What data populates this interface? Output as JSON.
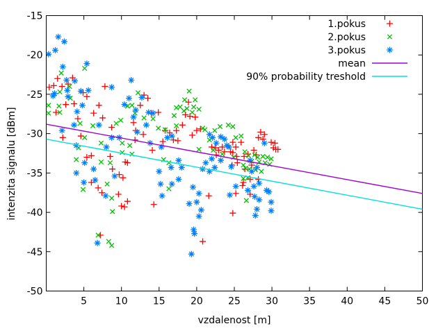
{
  "chart_data": {
    "type": "scatter",
    "title": "",
    "xlabel": "vzdalenost [m]",
    "ylabel": "intenzita signalu [dBm]",
    "xlim": [
      0,
      50
    ],
    "ylim": [
      -50,
      -15
    ],
    "xticks": [
      5,
      10,
      15,
      20,
      25,
      30,
      35,
      40,
      45,
      50
    ],
    "yticks": [
      -50,
      -45,
      -40,
      -35,
      -30,
      -25,
      -20,
      -15
    ],
    "grid": false,
    "legend_position": "top-right-inside",
    "background": "#ffffff",
    "axis_color": "#000000",
    "series": [
      {
        "name": "1.pokus",
        "kind": "points",
        "marker": "plus",
        "color": "#ff0000",
        "points": [
          [
            0.4,
            -24.1
          ],
          [
            1.0,
            -23.9
          ],
          [
            1.5,
            -23.0
          ],
          [
            2.1,
            -24.0
          ],
          [
            2.9,
            -23.7
          ],
          [
            3.5,
            -22.9
          ],
          [
            4.9,
            -24.8
          ],
          [
            5.4,
            -25.3
          ],
          [
            7.8,
            -24.0
          ],
          [
            2.6,
            -26.3
          ],
          [
            3.7,
            -26.2
          ],
          [
            7.0,
            -26.4
          ],
          [
            1.3,
            -27.3
          ],
          [
            6.3,
            -27.4
          ],
          [
            7.5,
            -28.0
          ],
          [
            4.2,
            -28.1
          ],
          [
            2.2,
            -30.5
          ],
          [
            4.6,
            -30.3
          ],
          [
            5.4,
            -33.0
          ],
          [
            6.0,
            -32.8
          ],
          [
            8.5,
            -32.9
          ],
          [
            6.0,
            -36.2
          ],
          [
            6.9,
            -36.9
          ],
          [
            7.4,
            -37.5
          ],
          [
            7.2,
            -42.9
          ],
          [
            8.7,
            -29.2
          ],
          [
            13.0,
            -25.1
          ],
          [
            13.5,
            -25.5
          ],
          [
            12.5,
            -26.4
          ],
          [
            14.0,
            -27.4
          ],
          [
            14.9,
            -27.3
          ],
          [
            11.6,
            -28.6
          ],
          [
            11.9,
            -29.6
          ],
          [
            12.9,
            -30.1
          ],
          [
            11.8,
            -30.8
          ],
          [
            15.8,
            -29.6
          ],
          [
            16.4,
            -29.9
          ],
          [
            15.5,
            -31.0
          ],
          [
            16.9,
            -30.8
          ],
          [
            17.3,
            -29.6
          ],
          [
            14.1,
            -32.1
          ],
          [
            10.5,
            -33.6
          ],
          [
            10.8,
            -33.7
          ],
          [
            8.8,
            -34.5
          ],
          [
            9.7,
            -35.2
          ],
          [
            10.2,
            -35.6
          ],
          [
            9.6,
            -37.7
          ],
          [
            10.8,
            -38.6
          ],
          [
            10.0,
            -39.2
          ],
          [
            10.4,
            -39.3
          ],
          [
            14.3,
            -39.0
          ],
          [
            18.9,
            -26.0
          ],
          [
            18.5,
            -27.6
          ],
          [
            19.1,
            -27.8
          ],
          [
            19.8,
            -27.9
          ],
          [
            18.1,
            -28.9
          ],
          [
            20.0,
            -29.6
          ],
          [
            20.5,
            -29.4
          ],
          [
            19.4,
            -30.2
          ],
          [
            17.5,
            -30.9
          ],
          [
            24.8,
            -31.1
          ],
          [
            25.9,
            -31.1
          ],
          [
            22.0,
            -31.7
          ],
          [
            22.5,
            -31.8
          ],
          [
            23.4,
            -31.7
          ],
          [
            25.2,
            -31.7
          ],
          [
            22.9,
            -32.1
          ],
          [
            23.7,
            -32.3
          ],
          [
            24.5,
            -32.3
          ],
          [
            22.6,
            -32.7
          ],
          [
            24.8,
            -32.4
          ],
          [
            25.3,
            -32.9
          ],
          [
            24.7,
            -34.0
          ],
          [
            25.4,
            -33.7
          ],
          [
            21.6,
            -37.9
          ],
          [
            25.2,
            -37.6
          ],
          [
            24.8,
            -40.1
          ],
          [
            20.8,
            -43.7
          ],
          [
            28.5,
            -29.8
          ],
          [
            29.0,
            -30.1
          ],
          [
            28.2,
            -30.5
          ],
          [
            28.8,
            -30.7
          ],
          [
            29.9,
            -31.1
          ],
          [
            30.4,
            -31.2
          ],
          [
            30.2,
            -31.8
          ],
          [
            30.5,
            -32.0
          ],
          [
            30.8,
            -32.0
          ],
          [
            27.6,
            -32.1
          ],
          [
            26.8,
            -32.6
          ],
          [
            27.9,
            -32.7
          ],
          [
            26.3,
            -32.9
          ],
          [
            27.3,
            -34.0
          ],
          [
            26.4,
            -34.5
          ],
          [
            27.1,
            -35.8
          ],
          [
            26.2,
            -36.2
          ],
          [
            26.1,
            -36.6
          ],
          [
            28.2,
            -35.8
          ],
          [
            27.1,
            -37.7
          ]
        ]
      },
      {
        "name": "2.pokus",
        "kind": "points",
        "marker": "cross",
        "color": "#00c000",
        "points": [
          [
            2.0,
            -22.3
          ],
          [
            5.1,
            -21.7
          ],
          [
            3.1,
            -24.0
          ],
          [
            1.8,
            -24.7
          ],
          [
            3.2,
            -25.5
          ],
          [
            0.3,
            -26.4
          ],
          [
            1.7,
            -26.5
          ],
          [
            0.3,
            -27.4
          ],
          [
            1.8,
            -27.3
          ],
          [
            4.5,
            -28.7
          ],
          [
            6.2,
            -29.0
          ],
          [
            5.1,
            -30.5
          ],
          [
            4.3,
            -31.8
          ],
          [
            7.3,
            -31.2
          ],
          [
            4.0,
            -33.3
          ],
          [
            7.3,
            -33.6
          ],
          [
            8.5,
            -33.7
          ],
          [
            4.9,
            -37.1
          ],
          [
            8.1,
            -36.4
          ],
          [
            6.9,
            -42.9
          ],
          [
            8.3,
            -43.7
          ],
          [
            12.2,
            -24.8
          ],
          [
            11.4,
            -26.4
          ],
          [
            10.8,
            -26.5
          ],
          [
            11.8,
            -27.4
          ],
          [
            13.0,
            -28.0
          ],
          [
            14.2,
            -28.1
          ],
          [
            9.9,
            -28.3
          ],
          [
            9.3,
            -28.7
          ],
          [
            14.9,
            -29.3
          ],
          [
            15.8,
            -29.5
          ],
          [
            17.3,
            -26.7
          ],
          [
            17.0,
            -27.7
          ],
          [
            17.3,
            -29.0
          ],
          [
            10.1,
            -31.2
          ],
          [
            11.1,
            -31.5
          ],
          [
            10.1,
            -32.4
          ],
          [
            11.4,
            -32.6
          ],
          [
            15.6,
            -33.3
          ],
          [
            16.3,
            -33.7
          ],
          [
            16.3,
            -37.0
          ],
          [
            8.7,
            -38.2
          ],
          [
            8.8,
            -39.9
          ],
          [
            8.7,
            -44.2
          ],
          [
            19.0,
            -24.6
          ],
          [
            18.4,
            -25.7
          ],
          [
            19.8,
            -25.7
          ],
          [
            17.8,
            -26.6
          ],
          [
            18.7,
            -26.8
          ],
          [
            19.6,
            -26.6
          ],
          [
            18.3,
            -27.1
          ],
          [
            19.4,
            -27.3
          ],
          [
            20.3,
            -26.9
          ],
          [
            20.8,
            -29.3
          ],
          [
            21.1,
            -29.5
          ],
          [
            22.4,
            -29.6
          ],
          [
            23.1,
            -29.1
          ],
          [
            24.2,
            -28.9
          ],
          [
            24.8,
            -29.1
          ],
          [
            25.2,
            -30.5
          ],
          [
            25.9,
            -30.3
          ],
          [
            21.7,
            -30.8
          ],
          [
            22.2,
            -32.1
          ],
          [
            20.3,
            -32.0
          ],
          [
            23.4,
            -32.6
          ],
          [
            24.9,
            -33.0
          ],
          [
            26.2,
            -34.0
          ],
          [
            26.2,
            -35.7
          ],
          [
            26.4,
            -32.3
          ],
          [
            26.9,
            -32.8
          ],
          [
            27.7,
            -32.7
          ],
          [
            28.1,
            -33.0
          ],
          [
            28.8,
            -32.9
          ],
          [
            29.4,
            -33.0
          ],
          [
            29.9,
            -33.2
          ],
          [
            27.3,
            -33.5
          ],
          [
            28.3,
            -33.6
          ],
          [
            29.1,
            -33.7
          ],
          [
            29.7,
            -33.9
          ],
          [
            26.5,
            -34.4
          ],
          [
            27.0,
            -34.5
          ],
          [
            27.8,
            -34.6
          ],
          [
            28.6,
            -34.8
          ],
          [
            26.8,
            -35.6
          ],
          [
            26.6,
            -38.5
          ]
        ]
      },
      {
        "name": "3.pokus",
        "kind": "points",
        "marker": "asterisk",
        "color": "#0080ff",
        "points": [
          [
            1.6,
            -17.7
          ],
          [
            2.4,
            -18.3
          ],
          [
            0.3,
            -19.9
          ],
          [
            1.2,
            -19.4
          ],
          [
            2.2,
            -21.5
          ],
          [
            5.4,
            -21.1
          ],
          [
            2.7,
            -23.2
          ],
          [
            3.8,
            -23.3
          ],
          [
            2.8,
            -24.5
          ],
          [
            4.6,
            -24.6
          ],
          [
            1.1,
            -24.9
          ],
          [
            5.6,
            -24.5
          ],
          [
            2.9,
            -25.3
          ],
          [
            0.9,
            -25.2
          ],
          [
            4.8,
            -26.4
          ],
          [
            4.1,
            -27.2
          ],
          [
            3.7,
            -28.9
          ],
          [
            7.0,
            -28.9
          ],
          [
            2.1,
            -29.6
          ],
          [
            4.0,
            -31.5
          ],
          [
            8.0,
            -31.7
          ],
          [
            5.1,
            -33.7
          ],
          [
            6.3,
            -34.5
          ],
          [
            4.0,
            -35.0
          ],
          [
            5.0,
            -36.2
          ],
          [
            6.5,
            -35.9
          ],
          [
            7.9,
            -37.9
          ],
          [
            6.8,
            -43.9
          ],
          [
            8.7,
            -24.1
          ],
          [
            11.3,
            -23.2
          ],
          [
            11.0,
            -25.5
          ],
          [
            12.7,
            -25.4
          ],
          [
            10.4,
            -26.3
          ],
          [
            11.9,
            -27.0
          ],
          [
            13.6,
            -27.3
          ],
          [
            14.2,
            -27.4
          ],
          [
            11.6,
            -27.9
          ],
          [
            13.3,
            -28.9
          ],
          [
            12.1,
            -29.8
          ],
          [
            8.7,
            -30.5
          ],
          [
            9.7,
            -30.5
          ],
          [
            13.8,
            -31.2
          ],
          [
            16.1,
            -30.5
          ],
          [
            16.7,
            -30.3
          ],
          [
            15.3,
            -31.7
          ],
          [
            9.1,
            -35.4
          ],
          [
            15.0,
            -34.8
          ],
          [
            16.6,
            -34.3
          ],
          [
            15.2,
            -36.4
          ],
          [
            16.7,
            -36.4
          ],
          [
            15.4,
            -37.9
          ],
          [
            17.6,
            -33.4
          ],
          [
            18.0,
            -34.3
          ],
          [
            17.6,
            -35.8
          ],
          [
            21.7,
            -30.1
          ],
          [
            22.1,
            -30.5
          ],
          [
            23.2,
            -30.4
          ],
          [
            23.7,
            -30.7
          ],
          [
            22.6,
            -31.2
          ],
          [
            24.0,
            -31.5
          ],
          [
            24.3,
            -31.7
          ],
          [
            22.0,
            -33.2
          ],
          [
            23.2,
            -33.4
          ],
          [
            21.2,
            -33.7
          ],
          [
            20.8,
            -34.5
          ],
          [
            21.7,
            -34.8
          ],
          [
            22.4,
            -34.3
          ],
          [
            24.6,
            -34.2
          ],
          [
            25.2,
            -36.7
          ],
          [
            24.4,
            -37.8
          ],
          [
            19.5,
            -36.8
          ],
          [
            20.3,
            -37.6
          ],
          [
            19.0,
            -38.9
          ],
          [
            20.0,
            -38.7
          ],
          [
            20.6,
            -39.7
          ],
          [
            20.3,
            -40.5
          ],
          [
            19.6,
            -42.2
          ],
          [
            19.7,
            -42.7
          ],
          [
            19.3,
            -45.3
          ],
          [
            29.0,
            -31.2
          ],
          [
            27.1,
            -33.4
          ],
          [
            28.0,
            -34.3
          ],
          [
            27.3,
            -34.8
          ],
          [
            28.3,
            -36.3
          ],
          [
            27.6,
            -36.7
          ],
          [
            26.8,
            -37.2
          ],
          [
            29.3,
            -37.2
          ],
          [
            29.6,
            -37.4
          ],
          [
            27.7,
            -38.0
          ],
          [
            28.3,
            -38.4
          ],
          [
            29.9,
            -38.7
          ],
          [
            28.0,
            -39.6
          ],
          [
            29.9,
            -39.8
          ],
          [
            27.8,
            -40.4
          ]
        ]
      },
      {
        "name": "mean",
        "kind": "line",
        "color": "#a000d0",
        "points": [
          [
            0,
            -28.8
          ],
          [
            50,
            -37.6
          ]
        ]
      },
      {
        "name": "90% probability treshold",
        "kind": "line",
        "color": "#00e0e0",
        "points": [
          [
            0,
            -30.7
          ],
          [
            50,
            -39.6
          ]
        ]
      }
    ]
  }
}
